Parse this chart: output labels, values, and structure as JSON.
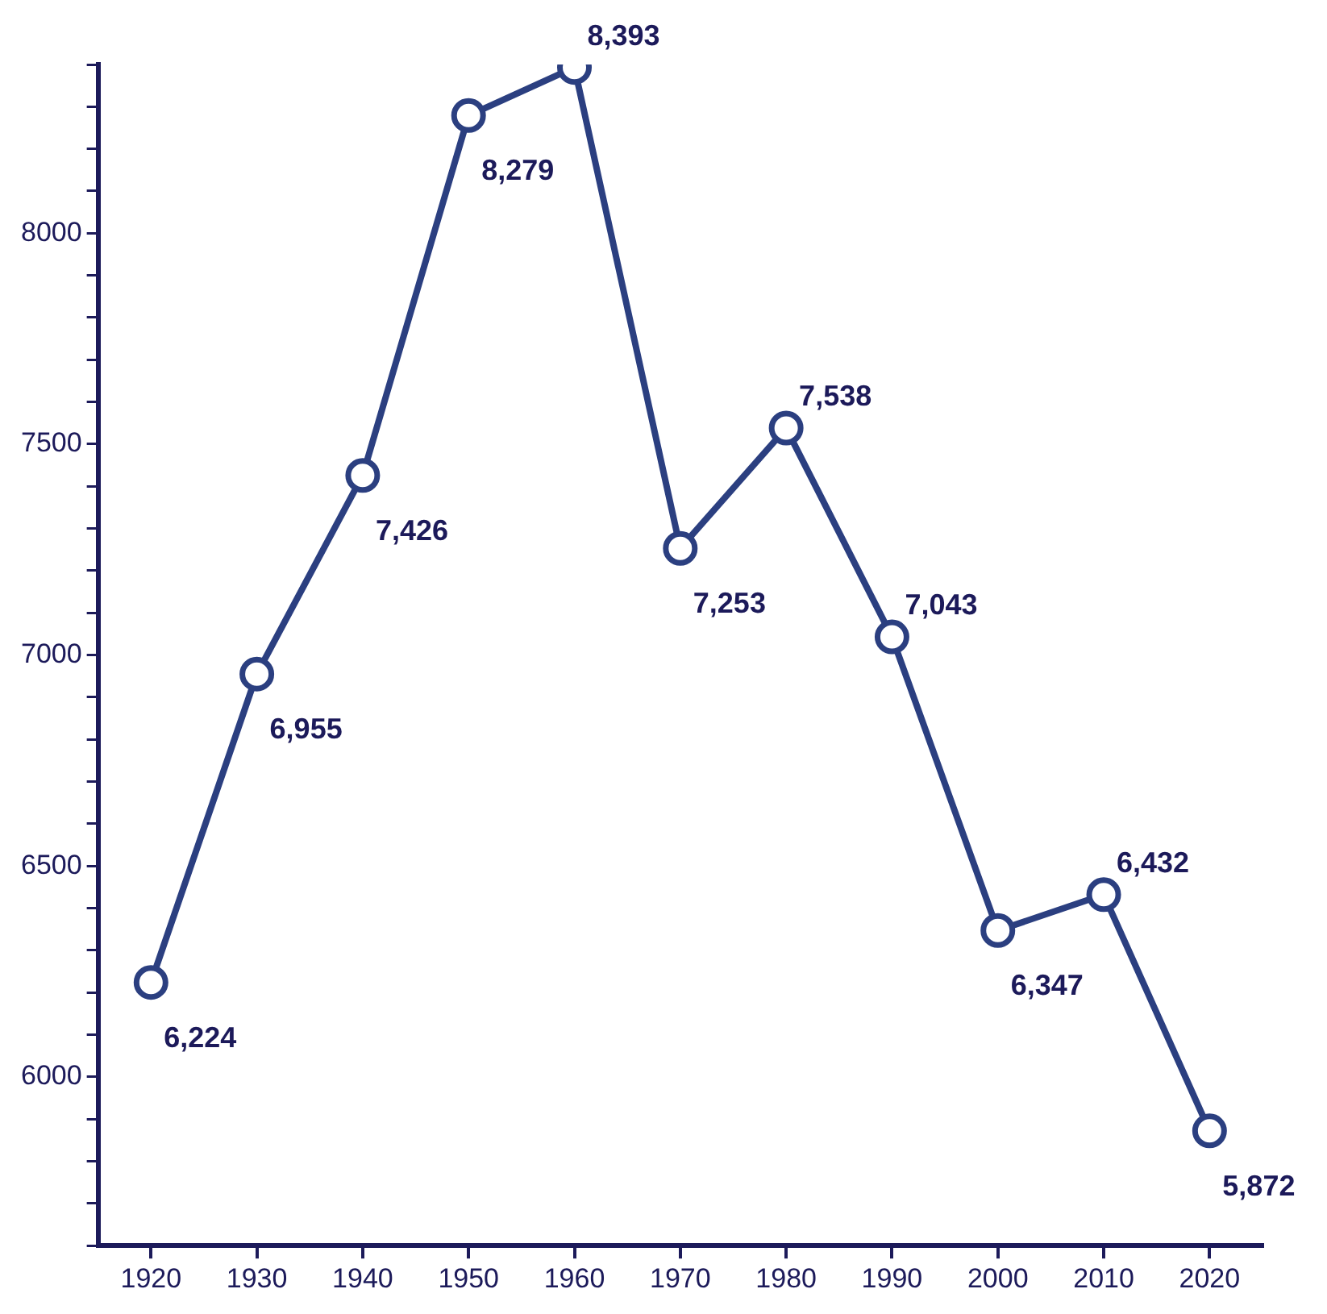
{
  "chart_data": {
    "type": "line",
    "categories": [
      "1920",
      "1930",
      "1940",
      "1950",
      "1960",
      "1970",
      "1980",
      "1990",
      "2000",
      "2010",
      "2020"
    ],
    "series": [
      {
        "color": "#2b3f80",
        "values": [
          6224,
          6955,
          7426,
          8279,
          8393,
          7253,
          7538,
          7043,
          6347,
          6432,
          5872
        ],
        "value_labels": [
          "6,224",
          "6,955",
          "7,426",
          "8,279",
          "8,393",
          "7,253",
          "7,538",
          "7,043",
          "6,347",
          "6,432",
          "5,872"
        ]
      }
    ],
    "ylim": [
      5600,
      8400
    ],
    "yticks": [
      {
        "value": 5600,
        "label": null
      },
      {
        "value": 5700,
        "label": null
      },
      {
        "value": 5800,
        "label": null
      },
      {
        "value": 5900,
        "label": null
      },
      6000,
      {
        "value": 6100,
        "label": null
      },
      {
        "value": 6200,
        "label": null
      },
      {
        "value": 6300,
        "label": null
      },
      {
        "value": 6400,
        "label": null
      },
      6500,
      {
        "value": 6600,
        "label": null
      },
      {
        "value": 6700,
        "label": null
      },
      {
        "value": 6800,
        "label": null
      },
      {
        "value": 6900,
        "label": null
      },
      7000,
      {
        "value": 7100,
        "label": null
      },
      {
        "value": 7200,
        "label": null
      },
      {
        "value": 7300,
        "label": null
      },
      {
        "value": 7400,
        "label": null
      },
      7500,
      {
        "value": 7600,
        "label": null
      },
      {
        "value": 7700,
        "label": null
      },
      {
        "value": 7800,
        "label": null
      },
      {
        "value": 7900,
        "label": null
      },
      8000,
      {
        "value": 8100,
        "label": null
      },
      {
        "value": 8200,
        "label": null
      },
      {
        "value": 8300,
        "label": null
      },
      {
        "value": 8400,
        "label": null
      }
    ],
    "grid": false,
    "legend": false,
    "marker": "circle",
    "line_style": "solid"
  }
}
